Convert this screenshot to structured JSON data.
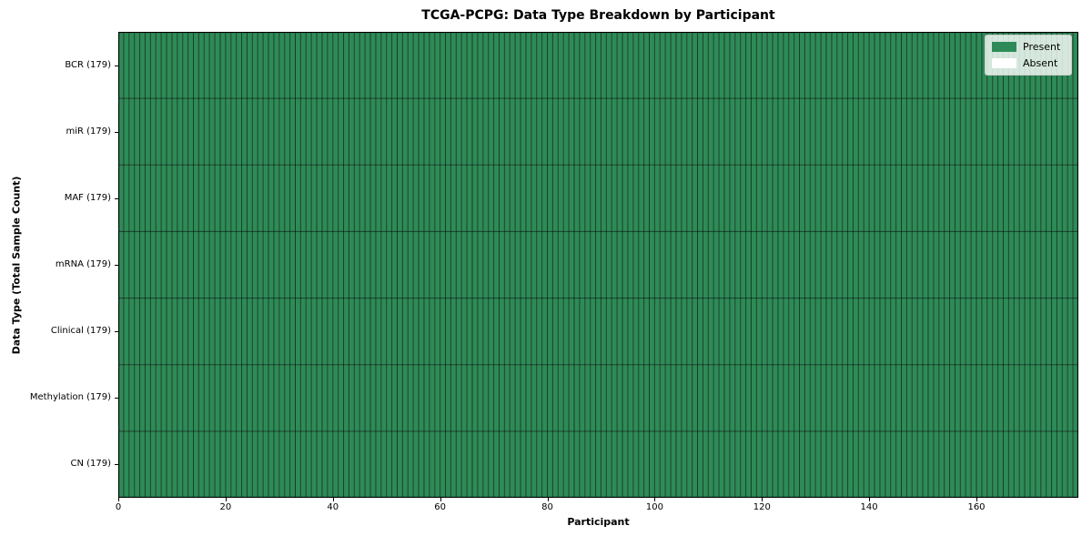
{
  "chart_data": {
    "type": "heatmap",
    "title": "TCGA-PCPG: Data Type Breakdown by Participant",
    "xlabel": "Participant",
    "ylabel": "Data Type (Total Sample Count)",
    "n_participants": 179,
    "x_range": [
      0,
      179
    ],
    "x_ticks": [
      0,
      20,
      40,
      60,
      80,
      100,
      120,
      140,
      160
    ],
    "rows": [
      {
        "label": "BCR (179)",
        "data_type": "BCR",
        "total_sample_count": 179,
        "present_count": 179,
        "absent_count": 0
      },
      {
        "label": "miR (179)",
        "data_type": "miR",
        "total_sample_count": 179,
        "present_count": 179,
        "absent_count": 0
      },
      {
        "label": "MAF (179)",
        "data_type": "MAF",
        "total_sample_count": 179,
        "present_count": 179,
        "absent_count": 0
      },
      {
        "label": "mRNA (179)",
        "data_type": "mRNA",
        "total_sample_count": 179,
        "present_count": 179,
        "absent_count": 0
      },
      {
        "label": "Clinical (179)",
        "data_type": "Clinical",
        "total_sample_count": 179,
        "present_count": 179,
        "absent_count": 0
      },
      {
        "label": "Methylation (179)",
        "data_type": "Methylation",
        "total_sample_count": 179,
        "present_count": 179,
        "absent_count": 0
      },
      {
        "label": "CN (179)",
        "data_type": "CN",
        "total_sample_count": 179,
        "present_count": 179,
        "absent_count": 0
      }
    ],
    "legend": [
      {
        "label": "Present",
        "color": "#2e8b57"
      },
      {
        "label": "Absent",
        "color": "#ffffff"
      }
    ],
    "colors": {
      "present": "#2e8b57",
      "absent": "#ffffff",
      "cell_edge": "rgba(0,0,0,0.55)",
      "frame": "#000000"
    },
    "legend_position": "upper right",
    "grid": "cell-borders"
  }
}
